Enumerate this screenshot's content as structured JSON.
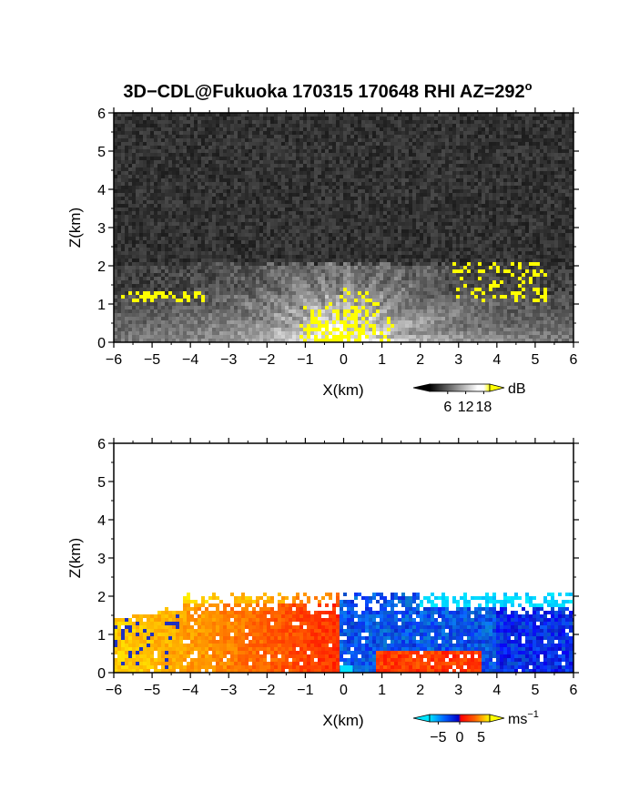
{
  "title": "3D−CDL@Fukuoka 170315 170648 RHI AZ=292",
  "title_superscript": "o",
  "chart_data": [
    {
      "type": "heatmap",
      "panel": "reflectivity",
      "xlabel": "X(km)",
      "ylabel": "Z(km)",
      "xlim": [
        -6,
        6
      ],
      "ylim": [
        0,
        6
      ],
      "x_ticks": [
        -6,
        -5,
        -4,
        -3,
        -2,
        -1,
        0,
        1,
        2,
        3,
        4,
        5,
        6
      ],
      "y_ticks": [
        0,
        1,
        2,
        3,
        4,
        5,
        6
      ],
      "x_tick_labels": [
        "−6",
        "−5",
        "−4",
        "−3",
        "−2",
        "−1",
        "0",
        "1",
        "2",
        "3",
        "4",
        "5",
        "6"
      ],
      "y_tick_labels": [
        "0",
        "1",
        "2",
        "3",
        "4",
        "5",
        "6"
      ],
      "colorbar": {
        "unit": "dB",
        "range": [
          0,
          20
        ],
        "ticks": [
          6,
          12,
          18
        ],
        "tick_labels": [
          "6",
          "12",
          "18"
        ],
        "colors": [
          "#000000",
          "#ffffff",
          "#ffff00"
        ]
      },
      "features": {
        "noise_background_gray": "#2b2b2b",
        "signal_top_km": 2.05,
        "strong_echo_color": "#ffff00"
      }
    },
    {
      "type": "heatmap",
      "panel": "doppler_velocity",
      "xlabel": "X(km)",
      "ylabel": "Z(km)",
      "xlim": [
        -6,
        6
      ],
      "ylim": [
        0,
        6
      ],
      "x_ticks": [
        -6,
        -5,
        -4,
        -3,
        -2,
        -1,
        0,
        1,
        2,
        3,
        4,
        5,
        6
      ],
      "y_ticks": [
        0,
        1,
        2,
        3,
        4,
        5,
        6
      ],
      "x_tick_labels": [
        "−6",
        "−5",
        "−4",
        "−3",
        "−2",
        "−1",
        "0",
        "1",
        "2",
        "3",
        "4",
        "5",
        "6"
      ],
      "y_tick_labels": [
        "0",
        "1",
        "2",
        "3",
        "4",
        "5",
        "6"
      ],
      "colorbar": {
        "unit": "ms",
        "unit_superscript": "−1",
        "range": [
          -7,
          7
        ],
        "ticks": [
          -5,
          0,
          5
        ],
        "tick_labels": [
          "−5",
          "0",
          "5"
        ],
        "colors": [
          "#00e5ff",
          "#0060ff",
          "#0000c8",
          "#ff0000",
          "#ff6000",
          "#ffff00"
        ]
      },
      "features": {
        "signal_top_km": 2.05,
        "negative_side_color": "#ff4000",
        "positive_side_color": "#1060ff"
      }
    }
  ]
}
